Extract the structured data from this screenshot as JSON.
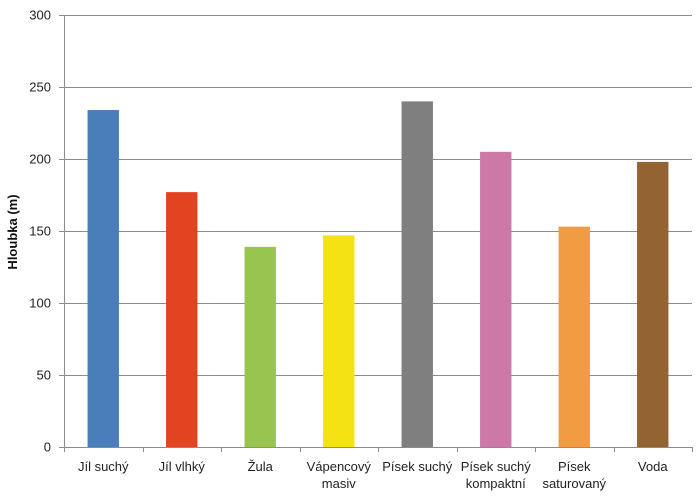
{
  "chart_data": {
    "type": "bar",
    "title": "",
    "xlabel": "",
    "ylabel": "Hloubka (m)",
    "ylim": [
      0,
      300
    ],
    "yticks": [
      0,
      50,
      100,
      150,
      200,
      250,
      300
    ],
    "grid": true,
    "legend": "none",
    "categories": [
      [
        "Jíl suchý"
      ],
      [
        "Jíl vlhký"
      ],
      [
        "Žula"
      ],
      [
        "Vápencový",
        "masiv"
      ],
      [
        "Písek suchý"
      ],
      [
        "Písek suchý",
        "kompaktní"
      ],
      [
        "Písek",
        "saturovaný"
      ],
      [
        "Voda"
      ]
    ],
    "values": [
      234,
      177,
      139,
      147,
      240,
      205,
      153,
      198
    ],
    "colors": [
      "#4a7ebb",
      "#e24320",
      "#98c54f",
      "#f5e214",
      "#7f7f7f",
      "#cc79a7",
      "#f19b43",
      "#936431"
    ]
  }
}
